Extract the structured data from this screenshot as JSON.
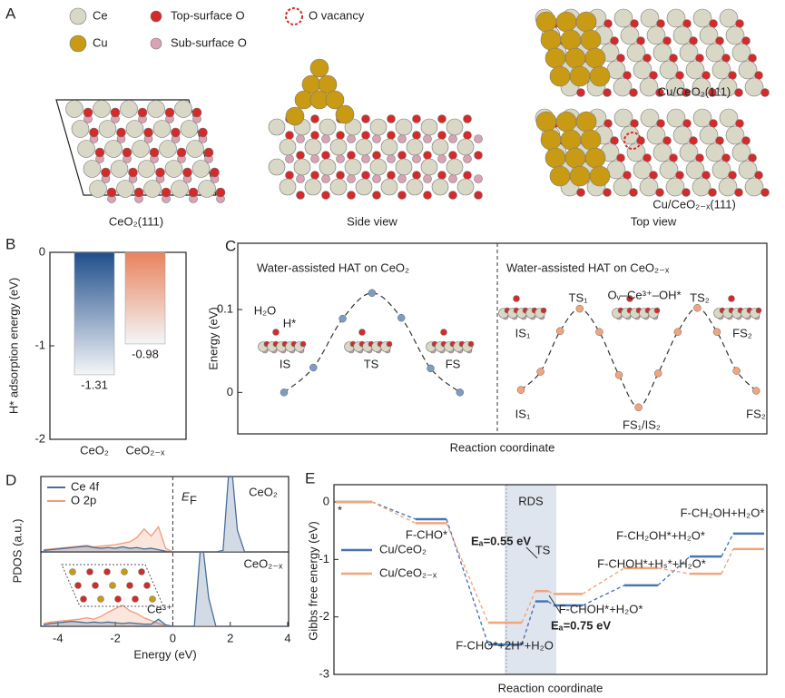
{
  "panel_a": {
    "panel_label": "A",
    "legend": [
      {
        "label": "Ce",
        "color": "#d9d7c6"
      },
      {
        "label": "Cu",
        "color": "#c99a14"
      },
      {
        "label": "Top-surface O",
        "color": "#d42a2a"
      },
      {
        "label": "Sub-surface O",
        "color": "#d9a3b3"
      },
      {
        "label": "O vacancy",
        "color": "#d42a2a"
      }
    ],
    "captions": [
      "CeO₂(111)",
      "Side view",
      "Top view"
    ],
    "view_labels": [
      "Cu/CeO₂(111)",
      "Cu/CeO₂₋ₓ(111)"
    ]
  },
  "chart_data": [
    {
      "type": "bar",
      "panel_label": "B",
      "ylabel": "H* adsorption energy (eV)",
      "categories": [
        "CeO₂",
        "CeO₂₋ₓ"
      ],
      "values": [
        -1.31,
        -0.98
      ],
      "colors": [
        "#1f4e8c",
        "#e9825c"
      ],
      "ylim": [
        -2,
        0
      ],
      "yticks": [
        0,
        -1,
        -2
      ]
    },
    {
      "type": "energy-profile",
      "panel_label": "C",
      "ylabel": "Energy (eV)",
      "xlabel": "Reaction coordinate",
      "ylim": [
        -0.05,
        0.18
      ],
      "yticks": [
        0,
        0.1
      ],
      "series": [
        {
          "color": "#7b9cc4",
          "values": [
            0.0,
            0.03,
            0.089,
            0.12,
            0.09,
            0.029,
            0.0
          ]
        },
        {
          "color": "#f0a57c",
          "values": [
            0.003,
            0.025,
            0.074,
            0.101,
            0.073,
            0.021,
            -0.018,
            0.023,
            0.073,
            0.102,
            0.073,
            0.026,
            0.002
          ]
        }
      ],
      "sections": [
        {
          "title": "Water-assisted HAT on CeO₂",
          "labels": [
            "H₂O",
            "H*",
            "IS",
            "TS",
            "FS"
          ]
        },
        {
          "title": "Water-assisted HAT on CeO₂₋ₓ",
          "labels": [
            "IS₁",
            "TS₁",
            "FS₁/IS₂",
            "TS₂",
            "FS₂",
            "IS₁",
            "Oᵥ–Ce³⁺–OH*",
            "FS₂"
          ]
        }
      ]
    },
    {
      "type": "pdos",
      "panel_label": "D",
      "ylabel": "PDOS (a.u.)",
      "xlabel": "Energy (eV)",
      "fermi_label": [
        "E",
        "F"
      ],
      "xlim": [
        -4.5,
        4
      ],
      "xticks": [
        -4,
        -2,
        0,
        2,
        4
      ],
      "ylim": [
        0,
        1
      ],
      "x": [
        -4.5,
        -4.25,
        -4,
        -3.75,
        -3.5,
        -3.25,
        -3,
        -2.75,
        -2.5,
        -2.25,
        -2,
        -1.75,
        -1.5,
        -1.25,
        -1,
        -0.75,
        -0.5,
        -0.25,
        0,
        0.25,
        0.5,
        0.75,
        1,
        1.25,
        1.5,
        1.75,
        2,
        2.25,
        2.5,
        2.75,
        3,
        3.25,
        3.5,
        3.75,
        4
      ],
      "series": [
        {
          "name": "Ce 4f",
          "color": "#4a6e96"
        },
        {
          "name": "O 2p",
          "color": "#f09a7a"
        }
      ],
      "panels": [
        {
          "label": "CeO₂",
          "values": [
            [
              0.02,
              0.03,
              0.04,
              0.05,
              0.06,
              0.07,
              0.08,
              0.06,
              0.05,
              0.06,
              0.05,
              0.07,
              0.05,
              0.06,
              0.04,
              0.05,
              0.03,
              0.01,
              0,
              0,
              0,
              0,
              0,
              0,
              0,
              0.02,
              1.4,
              0.3,
              0,
              0,
              0,
              0,
              0,
              0,
              0
            ],
            [
              0.03,
              0.04,
              0.05,
              0.06,
              0.07,
              0.08,
              0.09,
              0.07,
              0.08,
              0.09,
              0.1,
              0.12,
              0.14,
              0.2,
              0.32,
              0.22,
              0.35,
              0.05,
              0,
              0,
              0,
              0,
              0,
              0,
              0,
              0,
              0,
              0,
              0,
              0,
              0,
              0,
              0,
              0,
              0
            ]
          ]
        },
        {
          "label": "CeO₂₋ₓ",
          "note": "Ce³⁺",
          "values": [
            [
              0.02,
              0.04,
              0.05,
              0.06,
              0.07,
              0.06,
              0.05,
              0.06,
              0.05,
              0.06,
              0.05,
              0.04,
              0.05,
              0.04,
              0.03,
              0.03,
              0.1,
              0.02,
              0,
              0,
              0,
              0,
              1.3,
              0.4,
              0,
              0,
              0,
              0,
              0,
              0,
              0,
              0,
              0,
              0,
              0
            ],
            [
              0.04,
              0.06,
              0.07,
              0.08,
              0.09,
              0.1,
              0.12,
              0.1,
              0.14,
              0.2,
              0.25,
              0.3,
              0.22,
              0.18,
              0.12,
              0.08,
              0.04,
              0.01,
              0,
              0,
              0,
              0,
              0,
              0,
              0,
              0,
              0,
              0,
              0,
              0,
              0,
              0,
              0,
              0,
              0
            ]
          ]
        }
      ]
    },
    {
      "type": "step-diagram",
      "panel_label": "E",
      "ylabel": "Gibbs free energy (eV)",
      "xlabel": "Reaction coordinate",
      "ylim": [
        -3,
        0.3
      ],
      "yticks": [
        0,
        -1,
        -2,
        -3
      ],
      "series": [
        {
          "name": "Cu/CeO₂",
          "color": "#4a74b4",
          "values": [
            0,
            -0.3,
            -2.48,
            -1.73,
            -1.8,
            -1.45,
            -0.95,
            -0.55
          ]
        },
        {
          "name": "Cu/CeO₂₋ₓ",
          "color": "#f0a57c",
          "values": [
            0,
            -0.37,
            -2.1,
            -1.55,
            -1.6,
            -1.15,
            -1.25,
            -0.82
          ]
        }
      ],
      "band_label": "RDS",
      "annotations": [
        "*",
        "F-CHO*",
        "F-CHO*+2H*+H₂O",
        "TS",
        "F-CHOH*+H₂O*",
        "F-CHOH*+Hₛ*+H₂O*",
        "F-CH₂OH*+H₂O*",
        "F-CH₂OH+H₂O*",
        "Eₐ=0.55 eV",
        "Eₐ=0.75 eV"
      ]
    }
  ]
}
